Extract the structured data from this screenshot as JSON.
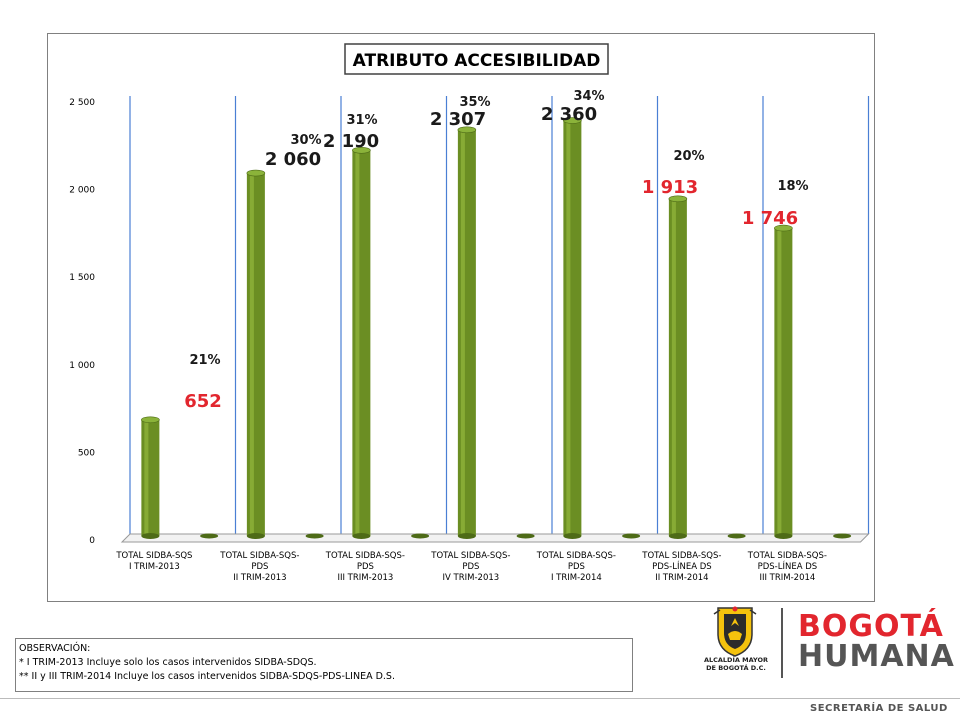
{
  "chart_data": {
    "type": "bar",
    "title": "ATRIBUTO ACCESIBILIDAD",
    "categories": [
      [
        "TOTAL SIDBA-SQS",
        "I TRIM-2013"
      ],
      [
        "TOTAL SIDBA-SQS-",
        "PDS",
        "II TRIM-2013"
      ],
      [
        "TOTAL SIDBA-SQS-",
        "PDS",
        "III TRIM-2013"
      ],
      [
        "TOTAL SIDBA-SQS-",
        "PDS",
        "IV TRIM-2013"
      ],
      [
        "TOTAL SIDBA-SQS-",
        "PDS",
        "I TRIM-2014"
      ],
      [
        "TOTAL SIDBA-SQS-",
        "PDS-LÍNEA DS",
        "II TRIM-2014"
      ],
      [
        "TOTAL SIDBA-SQS-",
        "PDS-LÍNEA DS",
        "III TRIM-2014"
      ]
    ],
    "values": [
      652,
      2060,
      2190,
      2307,
      2360,
      1913,
      1746
    ],
    "value_labels": [
      "652",
      "2 060",
      "2 190",
      "2 307",
      "2 360",
      "1 913",
      "1 746"
    ],
    "value_label_colors": [
      "#e2262e",
      "#1a1a1a",
      "#1a1a1a",
      "#1a1a1a",
      "#1a1a1a",
      "#e2262e",
      "#e2262e"
    ],
    "percent_labels": [
      "21%",
      "30%",
      "31%",
      "35%",
      "34%",
      "20%",
      "18%"
    ],
    "yticks": [
      "0",
      "500",
      "1 000",
      "1 500",
      "2 000",
      "2 500"
    ],
    "ytick_values": [
      0,
      500,
      1000,
      1500,
      2000,
      2500
    ],
    "ylim": [
      0,
      2500
    ],
    "xlabel": "",
    "ylabel": "",
    "bar_color": "#6b8e23",
    "grid_color": "#4a7fd4",
    "grid": true
  },
  "observation": {
    "title": "OBSERVACIÓN:",
    "lines": [
      "* I TRIM-2013 Incluye solo los casos intervenidos SIDBA-SDQS.",
      "** II y III TRIM-2014 Incluye los casos intervenidos SIDBA-SDQS-PDS-LINEA D.S."
    ]
  },
  "logos": {
    "alcaldia_line1": "ALCALDÍA MAYOR",
    "alcaldia_line2": "DE BOGOTÁ D.C.",
    "bogota_top": "BOGOTÁ",
    "bogota_bottom": "HUMANA"
  },
  "footer": "SECRETARÍA DE SALUD"
}
